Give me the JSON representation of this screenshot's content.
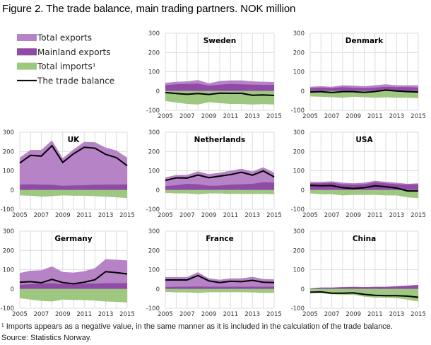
{
  "title": "Figure 2. The trade balance, main trading partners. NOK million",
  "footnote": "¹ Imports appears as a negative value, in the same manner as it is  included in the calculation of the trade balance.",
  "source": "Source: Statistics Norway.",
  "chart_data": {
    "type": "area",
    "legend": {
      "placement": "top-left",
      "entries": [
        {
          "key": "total_exports",
          "label": "Total exports",
          "color": "#b683c6"
        },
        {
          "key": "mainland_exports",
          "label": "Mainland exports",
          "color": "#8f4ba6"
        },
        {
          "key": "imports",
          "label": "Total imports¹",
          "color": "#9ec780"
        },
        {
          "key": "balance",
          "label": "The trade balance",
          "color": "#000000"
        }
      ]
    },
    "x": [
      2005,
      2006,
      2007,
      2008,
      2009,
      2010,
      2011,
      2012,
      2013,
      2014,
      2015
    ],
    "x_tick_labels": [
      "2005",
      "2007",
      "2009",
      "2011",
      "2013",
      "2015"
    ],
    "y_tick_labels": [
      "300",
      "200",
      "100",
      "0",
      "-100"
    ],
    "ylim": [
      -100,
      300
    ],
    "grid": true,
    "panels": [
      {
        "name": "Sweden",
        "total_exports": [
          42,
          48,
          50,
          57,
          40,
          52,
          55,
          55,
          50,
          48,
          47
        ],
        "mainland_exports": [
          30,
          35,
          37,
          38,
          28,
          33,
          37,
          35,
          33,
          32,
          32
        ],
        "imports": [
          -52,
          -60,
          -67,
          -70,
          -58,
          -63,
          -67,
          -67,
          -70,
          -68,
          -70
        ],
        "balance": [
          -8,
          -13,
          -17,
          -13,
          -18,
          -11,
          -12,
          -12,
          -22,
          -20,
          -23
        ]
      },
      {
        "name": "Denmark",
        "total_exports": [
          22,
          25,
          22,
          30,
          28,
          25,
          30,
          35,
          30,
          30,
          30
        ],
        "mainland_exports": [
          15,
          18,
          15,
          20,
          17,
          15,
          18,
          22,
          20,
          20,
          18
        ],
        "imports": [
          -28,
          -30,
          -32,
          -35,
          -30,
          -32,
          -35,
          -33,
          -35,
          -35,
          -37
        ],
        "balance": [
          -5,
          -3,
          -8,
          -3,
          -3,
          -7,
          -3,
          5,
          0,
          -3,
          -5
        ]
      },
      {
        "name": "UK",
        "total_exports": [
          168,
          208,
          208,
          258,
          165,
          210,
          250,
          248,
          220,
          205,
          168
        ],
        "mainland_exports": [
          28,
          30,
          28,
          27,
          22,
          24,
          25,
          27,
          28,
          28,
          30
        ],
        "imports": [
          -28,
          -30,
          -35,
          -32,
          -28,
          -30,
          -30,
          -32,
          -35,
          -38,
          -42
        ],
        "balance": [
          140,
          180,
          176,
          230,
          143,
          188,
          222,
          217,
          185,
          168,
          126
        ]
      },
      {
        "name": "Netherlands",
        "total_exports": [
          65,
          78,
          78,
          97,
          82,
          90,
          100,
          110,
          96,
          118,
          90
        ],
        "mainland_exports": [
          20,
          25,
          32,
          30,
          22,
          23,
          28,
          30,
          32,
          40,
          38
        ],
        "imports": [
          -15,
          -18,
          -18,
          -22,
          -18,
          -18,
          -20,
          -20,
          -20,
          -20,
          -22
        ],
        "balance": [
          50,
          63,
          62,
          78,
          64,
          72,
          80,
          92,
          77,
          99,
          68
        ]
      },
      {
        "name": "USA",
        "total_exports": [
          42,
          42,
          45,
          38,
          35,
          38,
          48,
          42,
          38,
          32,
          35
        ],
        "mainland_exports": [
          35,
          35,
          38,
          30,
          28,
          30,
          40,
          35,
          30,
          28,
          30
        ],
        "imports": [
          -18,
          -22,
          -22,
          -28,
          -25,
          -25,
          -25,
          -28,
          -28,
          -38,
          -42
        ],
        "balance": [
          24,
          22,
          23,
          12,
          8,
          12,
          22,
          17,
          10,
          -5,
          -5
        ]
      },
      {
        "name": "Germany",
        "total_exports": [
          83,
          95,
          97,
          117,
          88,
          85,
          92,
          108,
          155,
          152,
          148
        ],
        "mainland_exports": [
          22,
          25,
          28,
          30,
          25,
          25,
          27,
          28,
          30,
          30,
          30
        ],
        "imports": [
          -48,
          -55,
          -62,
          -65,
          -55,
          -57,
          -58,
          -60,
          -65,
          -67,
          -70
        ],
        "balance": [
          35,
          38,
          32,
          50,
          33,
          27,
          35,
          48,
          90,
          85,
          78
        ]
      },
      {
        "name": "France",
        "total_exports": [
          62,
          62,
          62,
          87,
          55,
          48,
          55,
          55,
          63,
          52,
          50
        ],
        "mainland_exports": [
          10,
          12,
          12,
          13,
          12,
          12,
          12,
          12,
          12,
          12,
          12
        ],
        "imports": [
          -15,
          -18,
          -18,
          -20,
          -17,
          -17,
          -17,
          -17,
          -18,
          -20,
          -20
        ],
        "balance": [
          47,
          47,
          47,
          70,
          42,
          33,
          40,
          38,
          45,
          35,
          33
        ]
      },
      {
        "name": "China",
        "total_exports": [
          3,
          8,
          8,
          10,
          12,
          10,
          12,
          12,
          15,
          18,
          22
        ],
        "mainland_exports": [
          3,
          7,
          7,
          9,
          10,
          9,
          10,
          10,
          13,
          16,
          20
        ],
        "imports": [
          -20,
          -20,
          -28,
          -30,
          -30,
          -40,
          -45,
          -45,
          -48,
          -55,
          -65
        ],
        "balance": [
          -17,
          -15,
          -22,
          -22,
          -20,
          -28,
          -33,
          -35,
          -35,
          -37,
          -43
        ]
      }
    ]
  }
}
